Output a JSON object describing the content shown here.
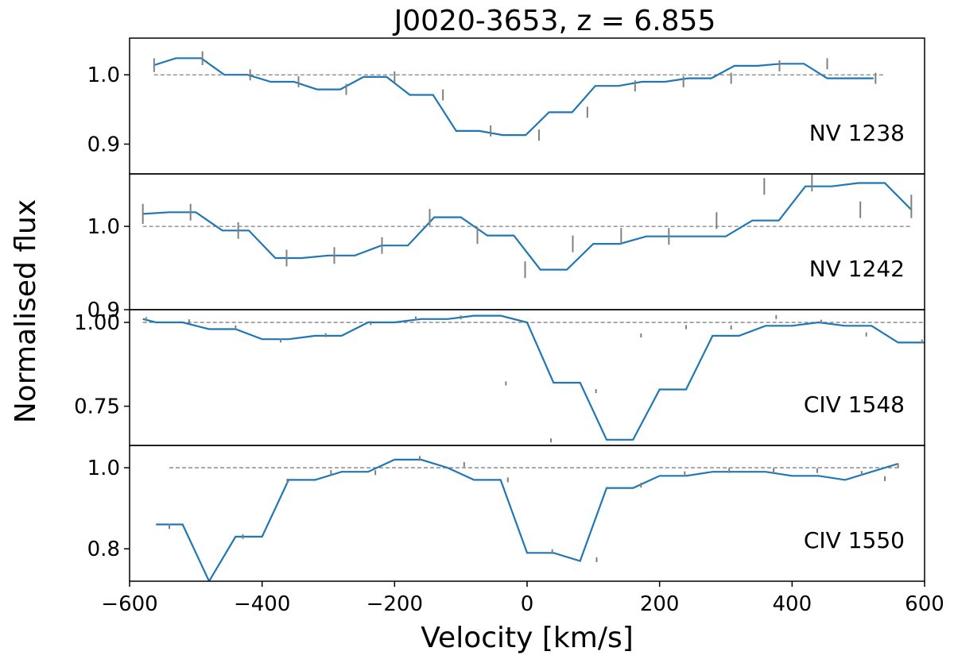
{
  "chart_data": {
    "type": "line",
    "title": "J0020-3653,    z = 6.855",
    "xlabel": "Velocity [km/s]",
    "ylabel": "Normalised flux",
    "xlim": [
      -600,
      600
    ],
    "xticks": [
      -600,
      -400,
      -200,
      0,
      200,
      400,
      600
    ],
    "xtick_labels": [
      "−600",
      "−400",
      "−200",
      "0",
      "200",
      "400",
      "600"
    ],
    "panels": [
      {
        "label": "NV 1238",
        "ylim": [
          0.857,
          1.053
        ],
        "yticks": [
          0.9,
          1.0
        ],
        "ytick_labels": [
          "0.9",
          "1.0"
        ],
        "continuum": 1.0,
        "continuum_x": [
          -563,
          540
        ],
        "x": [
          -563,
          -530,
          -492,
          -457,
          -422,
          -387,
          -352,
          -317,
          -282,
          -247,
          -212,
          -177,
          -142,
          -107,
          -72,
          -37,
          -2,
          33,
          68,
          103,
          138,
          173,
          208,
          243,
          278,
          313,
          348,
          383,
          418,
          453,
          488,
          523
        ],
        "y": [
          1.014,
          1.024,
          1.024,
          1.0,
          1.0,
          0.99,
          0.99,
          0.979,
          0.979,
          0.997,
          0.997,
          0.971,
          0.971,
          0.919,
          0.919,
          0.913,
          0.913,
          0.946,
          0.946,
          0.984,
          0.984,
          0.99,
          0.99,
          0.995,
          0.995,
          1.013,
          1.013,
          1.016,
          1.016,
          0.995,
          0.995,
          0.995
        ],
        "errors": [
          {
            "x": -563,
            "y": 1.014,
            "e": 0.01
          },
          {
            "x": -490,
            "y": 1.024,
            "e": 0.01
          },
          {
            "x": -418,
            "y": 1.0,
            "e": 0.008
          },
          {
            "x": -345,
            "y": 0.99,
            "e": 0.008
          },
          {
            "x": -273,
            "y": 0.979,
            "e": 0.008
          },
          {
            "x": -200,
            "y": 0.997,
            "e": 0.008
          },
          {
            "x": -127,
            "y": 0.971,
            "e": 0.008
          },
          {
            "x": -55,
            "y": 0.919,
            "e": 0.008
          },
          {
            "x": 18,
            "y": 0.913,
            "e": 0.008
          },
          {
            "x": 91,
            "y": 0.946,
            "e": 0.008
          },
          {
            "x": 163,
            "y": 0.984,
            "e": 0.008
          },
          {
            "x": 236,
            "y": 0.99,
            "e": 0.008
          },
          {
            "x": 308,
            "y": 0.995,
            "e": 0.008
          },
          {
            "x": 381,
            "y": 1.013,
            "e": 0.008
          },
          {
            "x": 453,
            "y": 1.016,
            "e": 0.008
          },
          {
            "x": 526,
            "y": 0.995,
            "e": 0.008
          }
        ]
      },
      {
        "label": "NV 1242",
        "ylim": [
          0.9,
          1.063
        ],
        "yticks": [
          0.9,
          1.0
        ],
        "ytick_labels": [
          "0.9",
          "1.0"
        ],
        "continuum": 1.0,
        "continuum_x": [
          -580,
          580
        ],
        "x": [
          -580,
          -540,
          -500,
          -460,
          -420,
          -380,
          -340,
          -300,
          -260,
          -220,
          -180,
          -140,
          -100,
          -60,
          -20,
          20,
          60,
          100,
          140,
          180,
          220,
          260,
          300,
          340,
          380,
          420,
          460,
          500,
          540,
          580
        ],
        "y": [
          1.015,
          1.017,
          1.017,
          0.995,
          0.995,
          0.962,
          0.962,
          0.965,
          0.965,
          0.977,
          0.977,
          1.011,
          1.011,
          0.989,
          0.989,
          0.948,
          0.948,
          0.979,
          0.979,
          0.988,
          0.988,
          0.988,
          0.988,
          1.007,
          1.007,
          1.048,
          1.048,
          1.052,
          1.052,
          1.02
        ],
        "errors": [
          {
            "x": -580,
            "y": 1.015,
            "e": 0.012
          },
          {
            "x": -508,
            "y": 1.017,
            "e": 0.01
          },
          {
            "x": -436,
            "y": 0.995,
            "e": 0.01
          },
          {
            "x": -363,
            "y": 0.962,
            "e": 0.01
          },
          {
            "x": -291,
            "y": 0.965,
            "e": 0.01
          },
          {
            "x": -219,
            "y": 0.977,
            "e": 0.01
          },
          {
            "x": -147,
            "y": 1.011,
            "e": 0.01
          },
          {
            "x": -75,
            "y": 0.989,
            "e": 0.01
          },
          {
            "x": -3,
            "y": 0.948,
            "e": 0.01
          },
          {
            "x": 69,
            "y": 0.979,
            "e": 0.01
          },
          {
            "x": 142,
            "y": 0.988,
            "e": 0.01
          },
          {
            "x": 214,
            "y": 0.988,
            "e": 0.01
          },
          {
            "x": 286,
            "y": 1.007,
            "e": 0.01
          },
          {
            "x": 358,
            "y": 1.048,
            "e": 0.01
          },
          {
            "x": 430,
            "y": 1.052,
            "e": 0.01
          },
          {
            "x": 503,
            "y": 1.02,
            "e": 0.01
          },
          {
            "x": 580,
            "y": 1.024,
            "e": 0.014
          }
        ]
      },
      {
        "label": "CIV 1548",
        "ylim": [
          0.633,
          1.038
        ],
        "yticks": [
          0.75,
          1.0
        ],
        "ytick_labels": [
          "0.75",
          "1.00"
        ],
        "continuum": 1.0,
        "continuum_x": [
          -580,
          600
        ],
        "x": [
          -580,
          -560,
          -520,
          -480,
          -440,
          -400,
          -360,
          -320,
          -280,
          -240,
          -200,
          -160,
          -120,
          -80,
          -40,
          0,
          40,
          80,
          120,
          160,
          200,
          240,
          280,
          320,
          360,
          400,
          440,
          480,
          520,
          560,
          600
        ],
        "y": [
          1.01,
          1.0,
          1.0,
          0.98,
          0.98,
          0.95,
          0.95,
          0.96,
          0.96,
          1.0,
          1.0,
          1.01,
          1.01,
          1.02,
          1.02,
          1.0,
          0.82,
          0.82,
          0.65,
          0.65,
          0.8,
          0.8,
          0.96,
          0.96,
          0.99,
          0.99,
          1.0,
          0.99,
          0.99,
          0.94,
          0.94
        ],
        "errors": [
          {
            "x": -575,
            "y": 1.01,
            "e": 0.006
          },
          {
            "x": -510,
            "y": 1.003,
            "e": 0.006
          },
          {
            "x": -440,
            "y": 0.985,
            "e": 0.006
          },
          {
            "x": -372,
            "y": 0.946,
            "e": 0.006
          },
          {
            "x": -304,
            "y": 0.962,
            "e": 0.006
          },
          {
            "x": -236,
            "y": 0.998,
            "e": 0.006
          },
          {
            "x": -168,
            "y": 1.012,
            "e": 0.006
          },
          {
            "x": -100,
            "y": 1.015,
            "e": 0.006
          },
          {
            "x": -32,
            "y": 0.818,
            "e": 0.006
          },
          {
            "x": 36,
            "y": 0.648,
            "e": 0.006
          },
          {
            "x": 104,
            "y": 0.795,
            "e": 0.006
          },
          {
            "x": 172,
            "y": 0.961,
            "e": 0.006
          },
          {
            "x": 240,
            "y": 0.986,
            "e": 0.006
          },
          {
            "x": 308,
            "y": 0.985,
            "e": 0.006
          },
          {
            "x": 376,
            "y": 1.016,
            "e": 0.006
          },
          {
            "x": 444,
            "y": 1.002,
            "e": 0.006
          },
          {
            "x": 512,
            "y": 0.964,
            "e": 0.006
          },
          {
            "x": 596,
            "y": 0.943,
            "e": 0.006
          }
        ]
      },
      {
        "label": "CIV 1550",
        "ylim": [
          0.72,
          1.055
        ],
        "yticks": [
          0.8,
          1.0
        ],
        "ytick_labels": [
          "0.8",
          "1.0"
        ],
        "continuum": 1.0,
        "continuum_x": [
          -540,
          560
        ],
        "x": [
          -560,
          -520,
          -480,
          -440,
          -400,
          -360,
          -320,
          -280,
          -240,
          -200,
          -160,
          -120,
          -80,
          -40,
          0,
          40,
          80,
          120,
          160,
          200,
          240,
          280,
          320,
          360,
          400,
          440,
          480,
          520,
          560
        ],
        "y": [
          0.86,
          0.86,
          0.72,
          0.83,
          0.83,
          0.97,
          0.97,
          0.99,
          0.99,
          1.02,
          1.02,
          1.0,
          0.97,
          0.97,
          0.79,
          0.79,
          0.77,
          0.95,
          0.95,
          0.98,
          0.98,
          0.99,
          0.99,
          0.99,
          0.98,
          0.98,
          0.97,
          0.99,
          1.01
        ],
        "errors": [
          {
            "x": -540,
            "y": 0.855,
            "e": 0.006
          },
          {
            "x": -429,
            "y": 0.83,
            "e": 0.006
          },
          {
            "x": -362,
            "y": 0.967,
            "e": 0.006
          },
          {
            "x": -296,
            "y": 0.988,
            "e": 0.006
          },
          {
            "x": -229,
            "y": 0.988,
            "e": 0.006
          },
          {
            "x": -162,
            "y": 1.023,
            "e": 0.006
          },
          {
            "x": -95,
            "y": 1.008,
            "e": 0.006
          },
          {
            "x": -29,
            "y": 0.97,
            "e": 0.006
          },
          {
            "x": 38,
            "y": 0.793,
            "e": 0.006
          },
          {
            "x": 105,
            "y": 0.773,
            "e": 0.006
          },
          {
            "x": 172,
            "y": 0.957,
            "e": 0.006
          },
          {
            "x": 238,
            "y": 0.985,
            "e": 0.006
          },
          {
            "x": 305,
            "y": 0.993,
            "e": 0.006
          },
          {
            "x": 372,
            "y": 0.993,
            "e": 0.006
          },
          {
            "x": 438,
            "y": 0.993,
            "e": 0.006
          },
          {
            "x": 505,
            "y": 0.986,
            "e": 0.006
          },
          {
            "x": 540,
            "y": 0.973,
            "e": 0.006
          },
          {
            "x": 560,
            "y": 1.005,
            "e": 0.006
          }
        ]
      }
    ],
    "colors": {
      "series": "#1f77b4",
      "errorbar": "#808080",
      "continuum": "#808080",
      "axes": "#000000"
    }
  }
}
